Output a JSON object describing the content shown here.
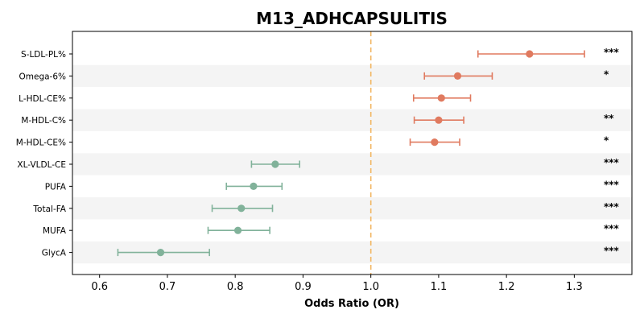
{
  "chart_data": {
    "type": "scatter",
    "title": "M13_ADHCAPSULITIS",
    "xlabel": "Odds Ratio (OR)",
    "ylabel": "",
    "xlim": [
      0.56,
      1.385
    ],
    "xticks": [
      0.6,
      0.7,
      0.8,
      0.9,
      1.0,
      1.1,
      1.2,
      1.3
    ],
    "xtick_labels": [
      "0.6",
      "0.7",
      "0.8",
      "0.9",
      "1.0",
      "1.1",
      "1.2",
      "1.3"
    ],
    "reference_line": 1.0,
    "grid": false,
    "legend": "none",
    "colors": {
      "above_reference": "#e07a5f",
      "below_reference": "#81b29a",
      "reference_line": "#f2b662",
      "band": "#f4f4f4"
    },
    "rows": [
      {
        "label": "S-LDL-PL%",
        "or": 1.234,
        "ci_low": 1.158,
        "ci_high": 1.315,
        "sig": "***"
      },
      {
        "label": "Omega-6%",
        "or": 1.128,
        "ci_low": 1.079,
        "ci_high": 1.179,
        "sig": "*"
      },
      {
        "label": "L-HDL-CE%",
        "or": 1.104,
        "ci_low": 1.063,
        "ci_high": 1.147,
        "sig": ""
      },
      {
        "label": "M-HDL-C%",
        "or": 1.1,
        "ci_low": 1.064,
        "ci_high": 1.137,
        "sig": "**"
      },
      {
        "label": "M-HDL-CE%",
        "or": 1.094,
        "ci_low": 1.058,
        "ci_high": 1.131,
        "sig": "*"
      },
      {
        "label": "XL-VLDL-CE",
        "or": 0.859,
        "ci_low": 0.824,
        "ci_high": 0.895,
        "sig": "***"
      },
      {
        "label": "PUFA",
        "or": 0.827,
        "ci_low": 0.787,
        "ci_high": 0.869,
        "sig": "***"
      },
      {
        "label": "Total-FA",
        "or": 0.809,
        "ci_low": 0.766,
        "ci_high": 0.855,
        "sig": "***"
      },
      {
        "label": "MUFA",
        "or": 0.804,
        "ci_low": 0.76,
        "ci_high": 0.851,
        "sig": "***"
      },
      {
        "label": "GlycA",
        "or": 0.69,
        "ci_low": 0.627,
        "ci_high": 0.762,
        "sig": "***"
      }
    ]
  }
}
